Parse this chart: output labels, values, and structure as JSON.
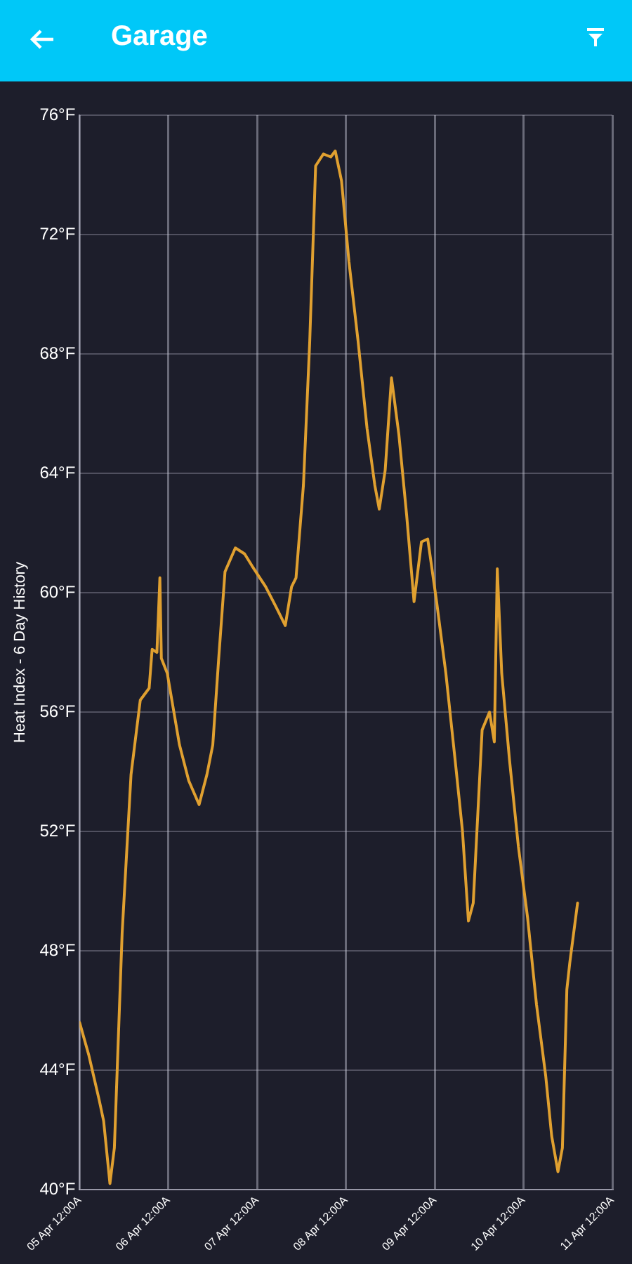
{
  "chart_data": {
    "type": "line",
    "title": "Garage",
    "ylabel": "Heat Index - 6 Day History",
    "x": [
      "--04-05T00:00",
      "--04-05T02:30",
      "--04-05T05:18",
      "--04-05T06:30",
      "--04-05T08:12",
      "--04-05T09:24",
      "--04-05T11:30",
      "--04-05T13:54",
      "--04-05T16:24",
      "--04-05T18:48",
      "--04-05T19:36",
      "--04-05T20:54",
      "--04-05T21:42",
      "--04-05T22:06",
      "--04-05T23:42",
      "--04-06T03:00",
      "--04-06T05:30",
      "--04-06T08:18",
      "--04-06T10:24",
      "--04-06T12:00",
      "--04-06T13:36",
      "--04-06T15:18",
      "--04-06T18:06",
      "--04-06T20:36",
      "--04-06T22:36",
      "--04-07T02:18",
      "--04-07T05:12",
      "--04-07T07:36",
      "--04-07T09:18",
      "--04-07T10:30",
      "--04-07T12:30",
      "--04-07T14:12",
      "--04-07T15:48",
      "--04-07T17:54",
      "--04-07T19:54",
      "--04-07T21:06",
      "--04-07T22:48",
      "--04-08T00:48",
      "--04-08T03:18",
      "--04-08T05:42",
      "--04-08T07:48",
      "--04-08T09:00",
      "--04-08T10:36",
      "--04-08T12:18",
      "--04-08T14:18",
      "--04-08T16:24",
      "--04-08T18:24",
      "--04-08T20:24",
      "--04-08T22:06",
      "--04-09T00:30",
      "--04-09T03:00",
      "--04-09T05:30",
      "--04-09T07:30",
      "--04-09T09:06",
      "--04-09T10:24",
      "--04-09T11:36",
      "--04-09T12:48",
      "--04-09T14:48",
      "--04-09T16:06",
      "--04-09T16:54",
      "--04-09T18:06",
      "--04-09T20:12",
      "--04-09T22:36",
      "--04-10T01:06",
      "--04-10T03:30",
      "--04-10T06:00",
      "--04-10T07:36",
      "--04-10T09:18",
      "--04-10T10:30",
      "--04-10T11:42",
      "--04-10T12:30",
      "--04-10T14:36"
    ],
    "series": [
      {
        "color": "#e0a030",
        "values": [
          45.6,
          44.5,
          43.0,
          42.3,
          40.2,
          41.4,
          48.6,
          53.9,
          56.4,
          56.8,
          58.1,
          58.0,
          60.5,
          57.8,
          57.3,
          54.9,
          53.7,
          52.9,
          53.9,
          54.9,
          57.8,
          60.7,
          61.5,
          61.3,
          60.9,
          60.2,
          59.5,
          58.9,
          60.2,
          60.5,
          63.6,
          68.4,
          74.3,
          74.7,
          74.6,
          74.8,
          73.8,
          71.1,
          68.4,
          65.5,
          63.6,
          62.8,
          64.1,
          67.2,
          65.3,
          62.6,
          59.7,
          61.7,
          61.8,
          59.7,
          57.3,
          54.4,
          52.0,
          49.0,
          49.6,
          52.5,
          55.4,
          56.0,
          55.0,
          60.8,
          57.3,
          54.4,
          51.5,
          49.1,
          46.2,
          43.8,
          41.8,
          40.6,
          41.4,
          46.7,
          47.6,
          49.6
        ]
      }
    ],
    "xlim": [
      "--04-05T00:00",
      "--04-11T00:00"
    ],
    "xticks": [
      {
        "value": "--04-05T00:00",
        "label": "05 Apr 12:00A"
      },
      {
        "value": "--04-06T00:00",
        "label": "06 Apr 12:00A"
      },
      {
        "value": "--04-07T00:00",
        "label": "07 Apr 12:00A"
      },
      {
        "value": "--04-08T00:00",
        "label": "08 Apr 12:00A"
      },
      {
        "value": "--04-09T00:00",
        "label": "09 Apr 12:00A"
      },
      {
        "value": "--04-10T00:00",
        "label": "10 Apr 12:00A"
      },
      {
        "value": "--04-11T00:00",
        "label": "11 Apr 12:00A"
      }
    ],
    "ylim": [
      40,
      76
    ],
    "yticks": [
      {
        "value": 40,
        "label": "40°F"
      },
      {
        "value": 44,
        "label": "44°F"
      },
      {
        "value": 48,
        "label": "48°F"
      },
      {
        "value": 52,
        "label": "52°F"
      },
      {
        "value": 56,
        "label": "56°F"
      },
      {
        "value": 60,
        "label": "60°F"
      },
      {
        "value": 64,
        "label": "64°F"
      },
      {
        "value": 68,
        "label": "68°F"
      },
      {
        "value": 72,
        "label": "72°F"
      },
      {
        "value": 76,
        "label": "76°F"
      }
    ],
    "grid": true,
    "marker": "none",
    "line_style": "solid",
    "legend": false
  }
}
